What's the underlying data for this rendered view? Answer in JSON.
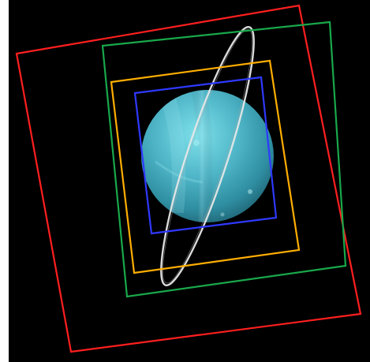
{
  "image": {
    "subject": "",
    "background_color": "#000000",
    "planet_color": "#58b7c8",
    "ring_color": "#d9d9d9",
    "frame_colors": {
      "red": "#ff1f1f",
      "green": "#19a84b",
      "orange": "#ffae00",
      "blue": "#2f39ff"
    }
  }
}
